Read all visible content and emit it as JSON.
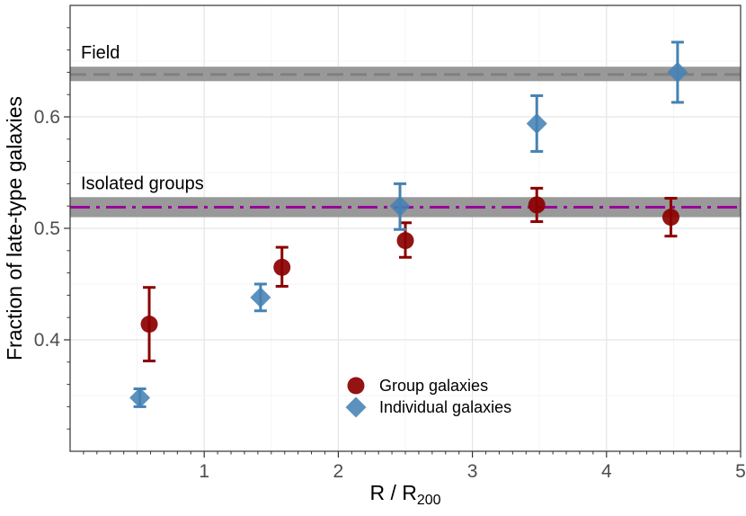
{
  "chart_data": {
    "type": "scatter",
    "title": "",
    "xlabel": "R / R",
    "xlabel_sub": "200",
    "ylabel": "Fraction of late-type galaxies",
    "xlim": [
      0,
      5
    ],
    "ylim": [
      0.3,
      0.7
    ],
    "xticks": [
      1,
      2,
      3,
      4,
      5
    ],
    "xtick_labels": [
      "1",
      "2",
      "3",
      "4",
      "5"
    ],
    "yticks": [
      0.4,
      0.5,
      0.6
    ],
    "ytick_labels": [
      "0.4",
      "0.5",
      "0.6"
    ],
    "grid": true,
    "legend_position": "bottom-center",
    "reference_lines": [
      {
        "name": "Field",
        "value": 0.638,
        "band": [
          0.632,
          0.645
        ],
        "style": "dashed",
        "color": "#808080",
        "band_color": "#999999"
      },
      {
        "name": "Isolated groups",
        "value": 0.519,
        "band": [
          0.51,
          0.528
        ],
        "style": "dashdot",
        "color": "#990099",
        "band_color": "#999999"
      }
    ],
    "series": [
      {
        "name": "Group galaxies",
        "marker": "circle",
        "color": "#8b0000",
        "points": [
          {
            "x": 0.59,
            "y": 0.414,
            "ylow": 0.381,
            "yhigh": 0.447
          },
          {
            "x": 1.58,
            "y": 0.465,
            "ylow": 0.448,
            "yhigh": 0.483
          },
          {
            "x": 2.5,
            "y": 0.489,
            "ylow": 0.474,
            "yhigh": 0.505
          },
          {
            "x": 3.48,
            "y": 0.521,
            "ylow": 0.506,
            "yhigh": 0.536
          },
          {
            "x": 4.48,
            "y": 0.51,
            "ylow": 0.493,
            "yhigh": 0.527
          }
        ]
      },
      {
        "name": "Individual galaxies",
        "marker": "diamond",
        "color": "#4682b4",
        "points": [
          {
            "x": 0.52,
            "y": 0.348,
            "ylow": 0.34,
            "yhigh": 0.356
          },
          {
            "x": 1.42,
            "y": 0.438,
            "ylow": 0.426,
            "yhigh": 0.45
          },
          {
            "x": 2.46,
            "y": 0.52,
            "ylow": 0.499,
            "yhigh": 0.54
          },
          {
            "x": 3.48,
            "y": 0.594,
            "ylow": 0.569,
            "yhigh": 0.619
          },
          {
            "x": 4.53,
            "y": 0.64,
            "ylow": 0.613,
            "yhigh": 0.667
          }
        ]
      }
    ]
  }
}
